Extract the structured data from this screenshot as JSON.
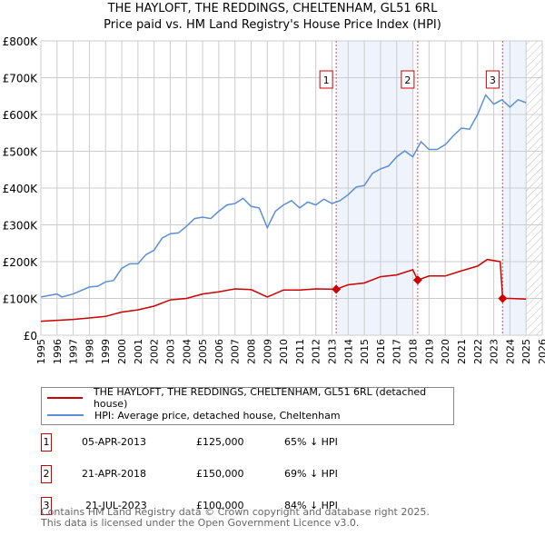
{
  "chart_data": {
    "type": "line",
    "title": "THE HAYLOFT, THE REDDINGS, CHELTENHAM, GL51 6RL",
    "subtitle": "Price paid vs. HM Land Registry's House Price Index (HPI)",
    "xlim": [
      1995,
      2026
    ],
    "ylim": [
      0,
      800000
    ],
    "x_ticks": [
      "1995",
      "1996",
      "1997",
      "1998",
      "1999",
      "2000",
      "2001",
      "2002",
      "2003",
      "2004",
      "2005",
      "2006",
      "2007",
      "2008",
      "2009",
      "2010",
      "2011",
      "2012",
      "2013",
      "2014",
      "2015",
      "2016",
      "2017",
      "2018",
      "2019",
      "2020",
      "2021",
      "2022",
      "2023",
      "2024",
      "2025",
      "2026"
    ],
    "y_ticks": [
      {
        "v": 0,
        "l": "£0"
      },
      {
        "v": 100000,
        "l": "£100K"
      },
      {
        "v": 200000,
        "l": "£200K"
      },
      {
        "v": 300000,
        "l": "£300K"
      },
      {
        "v": 400000,
        "l": "£400K"
      },
      {
        "v": 500000,
        "l": "£500K"
      },
      {
        "v": 600000,
        "l": "£600K"
      },
      {
        "v": 700000,
        "l": "£700K"
      },
      {
        "v": 800000,
        "l": "£800K"
      }
    ],
    "grid": true,
    "shaded_ranges": [
      [
        2013.26,
        2018.0
      ],
      [
        2023.55,
        2025.0
      ]
    ],
    "forecast_hatch_from": 2025.0,
    "series": [
      {
        "name": "THE HAYLOFT, THE REDDINGS, CHELTENHAM, GL51 6RL (detached house)",
        "color": "#cc0000",
        "x": [
          1995,
          1997,
          1998,
          1999,
          2000,
          2001,
          2002,
          2003,
          2004,
          2005,
          2006,
          2007,
          2008,
          2009,
          2010,
          2011,
          2012,
          2013.26,
          2014,
          2015,
          2016,
          2017,
          2018,
          2018.3,
          2019,
          2020,
          2021,
          2022,
          2022.6,
          2023.4,
          2023.55,
          2024,
          2025
        ],
        "y": [
          38000,
          43000,
          47000,
          51000,
          63000,
          69000,
          79000,
          96000,
          100000,
          112000,
          118000,
          126000,
          124000,
          104000,
          123000,
          123000,
          126000,
          125000,
          137000,
          142000,
          159000,
          164000,
          178000,
          150000,
          161000,
          161000,
          175000,
          188000,
          206000,
          200000,
          100000,
          100000,
          98000
        ]
      },
      {
        "name": "HPI: Average price, detached house, Cheltenham",
        "color": "#5b8fd4",
        "x": [
          1995,
          1996,
          1996.3,
          1997,
          1998,
          1998.5,
          1999,
          1999.5,
          2000,
          2000.5,
          2001,
          2001.5,
          2002,
          2002.5,
          2003,
          2003.5,
          2004,
          2004.5,
          2005,
          2005.5,
          2006,
          2006.5,
          2007,
          2007.5,
          2008,
          2008.5,
          2009,
          2009.5,
          2010,
          2010.5,
          2011,
          2011.5,
          2012,
          2012.5,
          2013,
          2013.5,
          2014,
          2014.5,
          2015,
          2015.5,
          2016,
          2016.5,
          2017,
          2017.5,
          2018,
          2018.5,
          2019,
          2019.5,
          2020,
          2020.5,
          2021,
          2021.5,
          2022,
          2022.5,
          2023,
          2023.5,
          2024,
          2024.5,
          2025
        ],
        "y": [
          104000,
          112000,
          104000,
          112000,
          131000,
          133000,
          145000,
          149000,
          182000,
          194000,
          194000,
          219000,
          231000,
          264000,
          276000,
          278000,
          296000,
          317000,
          321000,
          317000,
          337000,
          354000,
          358000,
          372000,
          350000,
          346000,
          292000,
          337000,
          354000,
          366000,
          346000,
          362000,
          354000,
          370000,
          358000,
          366000,
          382000,
          403000,
          407000,
          440000,
          452000,
          460000,
          485000,
          501000,
          485000,
          526000,
          505000,
          505000,
          518000,
          542000,
          563000,
          560000,
          600000,
          653000,
          628000,
          640000,
          620000,
          640000,
          632000
        ]
      }
    ],
    "markers": [
      {
        "label": "1",
        "x": 2013.26,
        "y": 125000
      },
      {
        "label": "2",
        "x": 2018.3,
        "y": 150000
      },
      {
        "label": "3",
        "x": 2023.55,
        "y": 100000
      }
    ]
  },
  "transactions": [
    {
      "num": "1",
      "date": "05-APR-2013",
      "price": "£125,000",
      "hpi": "65% ↓ HPI"
    },
    {
      "num": "2",
      "date": "21-APR-2018",
      "price": "£150,000",
      "hpi": "69% ↓ HPI"
    },
    {
      "num": "3",
      "date": "21-JUL-2023",
      "price": "£100,000",
      "hpi": "84% ↓ HPI"
    }
  ],
  "footer": {
    "line1": "Contains HM Land Registry data © Crown copyright and database right 2025.",
    "line2": "This data is licensed under the Open Government Licence v3.0."
  }
}
